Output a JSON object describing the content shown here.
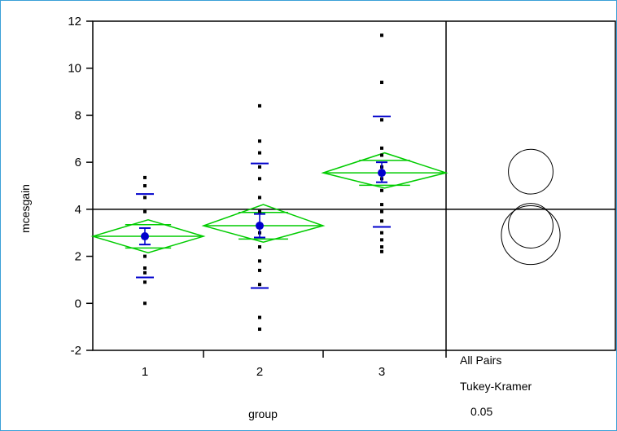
{
  "chart_data": {
    "type": "scatter",
    "title": "",
    "xlabel": "group",
    "ylabel": "mcesgain",
    "categories": [
      "1",
      "2",
      "3"
    ],
    "ylim": [
      -2,
      12
    ],
    "yticks": [
      -2,
      0,
      2,
      4,
      6,
      8,
      10,
      12
    ],
    "grand_mean": 4.0,
    "points": [
      {
        "group": "1",
        "values": [
          5.35,
          5.0,
          4.5,
          3.9,
          2.0,
          1.5,
          1.3,
          0.9,
          0.0
        ]
      },
      {
        "group": "2",
        "values": [
          8.4,
          6.9,
          6.4,
          5.8,
          5.3,
          4.5,
          3.9,
          3.0,
          2.4,
          1.8,
          1.4,
          0.8,
          -0.6,
          -1.1
        ]
      },
      {
        "group": "3",
        "values": [
          11.4,
          9.4,
          7.8,
          6.6,
          6.3,
          5.8,
          5.3,
          4.8,
          4.2,
          3.9,
          3.5,
          3.0,
          2.7,
          2.4,
          2.2
        ]
      }
    ],
    "means": [
      {
        "group": "1",
        "mean": 2.85,
        "ci": [
          2.15,
          3.55
        ],
        "se": [
          2.5,
          3.2
        ],
        "sd": [
          1.1,
          4.65
        ]
      },
      {
        "group": "2",
        "mean": 3.3,
        "ci": [
          2.6,
          4.2
        ],
        "se": [
          2.8,
          3.8
        ],
        "sd": [
          0.65,
          5.95
        ]
      },
      {
        "group": "3",
        "mean": 5.55,
        "ci": [
          4.9,
          6.4
        ],
        "se": [
          5.15,
          6.0
        ],
        "sd": [
          3.25,
          7.95
        ]
      }
    ],
    "comparison_circles": [
      {
        "center": 5.6,
        "radius": 0.95
      },
      {
        "center": 3.3,
        "radius": 0.95
      },
      {
        "center": 2.9,
        "radius": 1.25
      }
    ],
    "test_label": {
      "line1": "All Pairs",
      "line2": "Tukey-Kramer",
      "alpha": "0.05"
    },
    "colors": {
      "diamond": "#00cc00",
      "mean_marker": "#0000cc",
      "points": "#000000",
      "circles": "#000000",
      "frame": "#3aa0d8"
    }
  }
}
